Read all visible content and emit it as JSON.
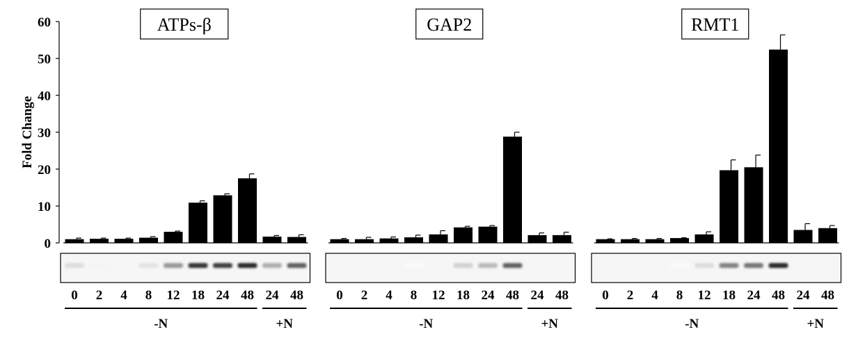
{
  "chart_data": {
    "type": "bar",
    "ylabel": "Fold Change",
    "ylim": [
      0,
      60
    ],
    "yticks": [
      0,
      10,
      20,
      30,
      40,
      50,
      60
    ],
    "categories": [
      "0",
      "2",
      "4",
      "8",
      "12",
      "18",
      "24",
      "48",
      "24",
      "48"
    ],
    "groups": [
      {
        "label": "-N",
        "lanes": 8
      },
      {
        "label": "+N",
        "lanes": 2
      }
    ],
    "series": [
      {
        "name": "ATPs-β",
        "values": [
          1.0,
          1.1,
          1.1,
          1.4,
          3.0,
          10.9,
          12.9,
          17.5,
          1.7,
          1.6
        ],
        "errors": [
          0.3,
          0.2,
          0.2,
          0.3,
          0.2,
          0.5,
          0.4,
          1.2,
          0.3,
          0.6
        ]
      },
      {
        "name": "GAP2",
        "values": [
          1.0,
          1.0,
          1.2,
          1.5,
          2.3,
          4.2,
          4.4,
          28.8,
          2.1,
          2.1
        ],
        "errors": [
          0.2,
          0.5,
          0.4,
          0.6,
          1.0,
          0.3,
          0.3,
          1.2,
          0.6,
          0.8
        ]
      },
      {
        "name": "RMT1",
        "values": [
          1.0,
          1.0,
          1.0,
          1.3,
          2.3,
          19.7,
          20.5,
          52.4,
          3.5,
          4.0
        ],
        "errors": [
          0.1,
          0.2,
          0.2,
          0.1,
          0.7,
          2.8,
          3.3,
          4.0,
          1.7,
          0.7
        ]
      }
    ],
    "blot_band_intensity": [
      [
        0.15,
        0.05,
        0.04,
        0.12,
        0.45,
        0.9,
        0.85,
        0.95,
        0.35,
        0.7
      ],
      [
        0.0,
        0.0,
        0.0,
        0.02,
        0.04,
        0.2,
        0.3,
        0.7,
        0.0,
        0.0
      ],
      [
        0.0,
        0.0,
        0.0,
        0.02,
        0.15,
        0.55,
        0.6,
        0.95,
        0.0,
        0.0
      ]
    ],
    "grid": false,
    "legend": "none"
  }
}
